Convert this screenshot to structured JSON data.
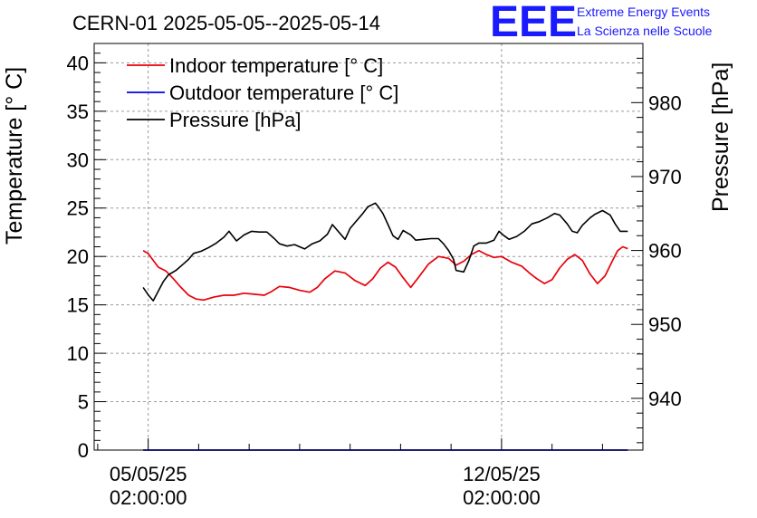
{
  "chart_data": {
    "type": "line",
    "title": "CERN-01 2025-05-05--2025-05-14",
    "logo": {
      "text": "EEE",
      "line1": "Extreme Energy Events",
      "line2": "La Scienza nelle Scuole",
      "color": "#1a1aff"
    },
    "x_axis": {
      "unit": "days since 05/05/25 02:00:00",
      "range": [
        -1.07,
        9.8
      ],
      "ticks": [
        {
          "value": 0,
          "line1": "05/05/25",
          "line2": "02:00:00"
        },
        {
          "value": 7,
          "line1": "12/05/25",
          "line2": "02:00:00"
        }
      ]
    },
    "y_left": {
      "label": "Temperature [° C]",
      "range": [
        0,
        42
      ],
      "tick_values": [
        0,
        5,
        10,
        15,
        20,
        25,
        30,
        35,
        40
      ],
      "tick_labels": [
        "0",
        "5",
        "10",
        "15",
        "20",
        "25",
        "30",
        "35",
        "40"
      ]
    },
    "y_right": {
      "label": "Pressure [hPa]",
      "range": [
        933,
        988
      ],
      "tick_values": [
        940,
        950,
        960,
        970,
        980
      ],
      "tick_labels": [
        "940",
        "950",
        "960",
        "970",
        "980"
      ]
    },
    "legend": {
      "position": "top-left",
      "entries": [
        {
          "label": "Indoor temperature [° C]",
          "color": "#e8000b"
        },
        {
          "label": "Outdoor temperature [° C]",
          "color": "#0000ee"
        },
        {
          "label": "Pressure [hPa]",
          "color": "#000000"
        }
      ]
    },
    "series": [
      {
        "name": "Indoor temperature [° C]",
        "axis": "left",
        "color": "#e8000b",
        "points": [
          [
            -0.1,
            20.6
          ],
          [
            0.0,
            20.3
          ],
          [
            0.1,
            19.6
          ],
          [
            0.2,
            18.9
          ],
          [
            0.35,
            18.5
          ],
          [
            0.5,
            17.7
          ],
          [
            0.65,
            16.8
          ],
          [
            0.8,
            16.0
          ],
          [
            0.95,
            15.6
          ],
          [
            1.1,
            15.5
          ],
          [
            1.3,
            15.8
          ],
          [
            1.5,
            16.0
          ],
          [
            1.7,
            16.0
          ],
          [
            1.9,
            16.2
          ],
          [
            2.1,
            16.1
          ],
          [
            2.3,
            16.0
          ],
          [
            2.45,
            16.4
          ],
          [
            2.6,
            16.9
          ],
          [
            2.8,
            16.8
          ],
          [
            3.0,
            16.5
          ],
          [
            3.2,
            16.3
          ],
          [
            3.35,
            16.8
          ],
          [
            3.5,
            17.7
          ],
          [
            3.7,
            18.5
          ],
          [
            3.9,
            18.3
          ],
          [
            4.1,
            17.5
          ],
          [
            4.3,
            17.0
          ],
          [
            4.45,
            17.7
          ],
          [
            4.6,
            18.8
          ],
          [
            4.75,
            19.4
          ],
          [
            4.9,
            18.9
          ],
          [
            5.05,
            17.8
          ],
          [
            5.2,
            16.8
          ],
          [
            5.35,
            17.8
          ],
          [
            5.55,
            19.2
          ],
          [
            5.75,
            20.0
          ],
          [
            5.95,
            19.8
          ],
          [
            6.1,
            19.1
          ],
          [
            6.25,
            19.5
          ],
          [
            6.4,
            20.2
          ],
          [
            6.55,
            20.6
          ],
          [
            6.7,
            20.2
          ],
          [
            6.85,
            19.9
          ],
          [
            7.0,
            20.0
          ],
          [
            7.2,
            19.4
          ],
          [
            7.4,
            19.0
          ],
          [
            7.55,
            18.3
          ],
          [
            7.7,
            17.7
          ],
          [
            7.85,
            17.2
          ],
          [
            8.0,
            17.6
          ],
          [
            8.15,
            18.8
          ],
          [
            8.3,
            19.7
          ],
          [
            8.45,
            20.2
          ],
          [
            8.6,
            19.6
          ],
          [
            8.75,
            18.2
          ],
          [
            8.9,
            17.2
          ],
          [
            9.05,
            18.0
          ],
          [
            9.2,
            19.6
          ],
          [
            9.3,
            20.6
          ],
          [
            9.4,
            21.0
          ],
          [
            9.5,
            20.8
          ]
        ]
      },
      {
        "name": "Outdoor temperature [° C]",
        "axis": "left",
        "color": "#0000ee",
        "points": [
          [
            -0.1,
            0
          ],
          [
            9.5,
            0
          ]
        ]
      },
      {
        "name": "Pressure [hPa]",
        "axis": "right",
        "color": "#000000",
        "points": [
          [
            -0.1,
            955
          ],
          [
            0.0,
            954.0
          ],
          [
            0.1,
            953.2
          ],
          [
            0.2,
            954.5
          ],
          [
            0.3,
            955.8
          ],
          [
            0.4,
            956.7
          ],
          [
            0.55,
            957.3
          ],
          [
            0.7,
            958.2
          ],
          [
            0.8,
            958.8
          ],
          [
            0.9,
            959.6
          ],
          [
            1.05,
            959.9
          ],
          [
            1.2,
            960.4
          ],
          [
            1.35,
            961.0
          ],
          [
            1.5,
            961.8
          ],
          [
            1.6,
            962.6
          ],
          [
            1.75,
            961.3
          ],
          [
            1.9,
            962.1
          ],
          [
            2.05,
            962.6
          ],
          [
            2.2,
            962.5
          ],
          [
            2.35,
            962.5
          ],
          [
            2.5,
            961.6
          ],
          [
            2.6,
            960.9
          ],
          [
            2.75,
            960.6
          ],
          [
            2.9,
            960.8
          ],
          [
            3.1,
            960.2
          ],
          [
            3.25,
            960.9
          ],
          [
            3.4,
            961.3
          ],
          [
            3.55,
            962.2
          ],
          [
            3.65,
            963.5
          ],
          [
            3.8,
            962.3
          ],
          [
            3.9,
            961.5
          ],
          [
            4.0,
            963.0
          ],
          [
            4.1,
            963.8
          ],
          [
            4.25,
            965.0
          ],
          [
            4.35,
            965.9
          ],
          [
            4.5,
            966.4
          ],
          [
            4.55,
            966.0
          ],
          [
            4.65,
            965.0
          ],
          [
            4.75,
            963.5
          ],
          [
            4.85,
            962.0
          ],
          [
            4.95,
            961.5
          ],
          [
            5.05,
            962.7
          ],
          [
            5.2,
            962.1
          ],
          [
            5.3,
            961.4
          ],
          [
            5.45,
            961.5
          ],
          [
            5.6,
            961.6
          ],
          [
            5.75,
            961.6
          ],
          [
            5.85,
            960.9
          ],
          [
            5.95,
            960.0
          ],
          [
            6.05,
            958.8
          ],
          [
            6.1,
            957.3
          ],
          [
            6.25,
            957.1
          ],
          [
            6.35,
            958.6
          ],
          [
            6.45,
            960.6
          ],
          [
            6.55,
            961.0
          ],
          [
            6.7,
            961.0
          ],
          [
            6.85,
            961.4
          ],
          [
            6.95,
            962.6
          ],
          [
            7.05,
            962.0
          ],
          [
            7.15,
            961.5
          ],
          [
            7.3,
            961.9
          ],
          [
            7.45,
            962.6
          ],
          [
            7.6,
            963.6
          ],
          [
            7.75,
            963.9
          ],
          [
            7.9,
            964.4
          ],
          [
            8.05,
            965.0
          ],
          [
            8.15,
            964.8
          ],
          [
            8.3,
            963.6
          ],
          [
            8.4,
            962.6
          ],
          [
            8.5,
            962.4
          ],
          [
            8.6,
            963.4
          ],
          [
            8.75,
            964.4
          ],
          [
            8.85,
            964.9
          ],
          [
            9.0,
            965.4
          ],
          [
            9.15,
            964.8
          ],
          [
            9.25,
            963.6
          ],
          [
            9.35,
            962.6
          ],
          [
            9.5,
            962.6
          ]
        ]
      }
    ]
  }
}
